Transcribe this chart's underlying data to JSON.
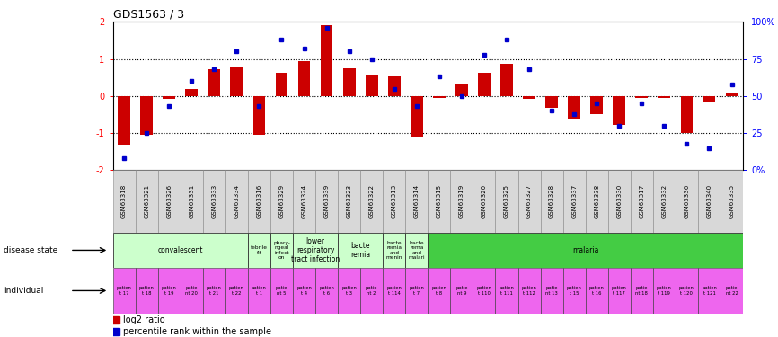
{
  "title": "GDS1563 / 3",
  "samples": [
    "GSM63318",
    "GSM63321",
    "GSM63326",
    "GSM63331",
    "GSM63333",
    "GSM63334",
    "GSM63316",
    "GSM63329",
    "GSM63324",
    "GSM63339",
    "GSM63323",
    "GSM63322",
    "GSM63313",
    "GSM63314",
    "GSM63315",
    "GSM63319",
    "GSM63320",
    "GSM63325",
    "GSM63327",
    "GSM63328",
    "GSM63337",
    "GSM63338",
    "GSM63330",
    "GSM63317",
    "GSM63332",
    "GSM63336",
    "GSM63340",
    "GSM63335"
  ],
  "log2_ratio": [
    -1.3,
    -1.05,
    -0.08,
    0.18,
    0.72,
    0.78,
    -1.05,
    0.62,
    0.95,
    1.92,
    0.75,
    0.58,
    0.52,
    -1.1,
    -0.05,
    0.32,
    0.62,
    0.88,
    -0.08,
    -0.32,
    -0.62,
    -0.48,
    -0.78,
    -0.05,
    -0.05,
    -1.0,
    -0.18,
    0.1
  ],
  "percentile": [
    8,
    25,
    43,
    60,
    68,
    80,
    43,
    88,
    82,
    96,
    80,
    75,
    55,
    43,
    63,
    50,
    78,
    88,
    68,
    40,
    38,
    45,
    30,
    45,
    30,
    18,
    15,
    58
  ],
  "disease_state_groups": [
    {
      "label": "convalescent",
      "start": 0,
      "end": 5,
      "color": "#ccffcc"
    },
    {
      "label": "febrile\nfit",
      "start": 6,
      "end": 6,
      "color": "#ccffcc"
    },
    {
      "label": "phary-\nngeal\ninfect\non",
      "start": 7,
      "end": 7,
      "color": "#ccffcc"
    },
    {
      "label": "lower\nrespiratory\ntract infection",
      "start": 8,
      "end": 9,
      "color": "#ccffcc"
    },
    {
      "label": "bacte\nremia",
      "start": 10,
      "end": 11,
      "color": "#ccffcc"
    },
    {
      "label": "bacte\nremia\nand\nmenin",
      "start": 12,
      "end": 12,
      "color": "#ccffcc"
    },
    {
      "label": "bacte\nrema\nand\nmalari",
      "start": 13,
      "end": 13,
      "color": "#ccffcc"
    },
    {
      "label": "malaria",
      "start": 14,
      "end": 27,
      "color": "#44cc44"
    }
  ],
  "individual_labels": [
    "patien\nt 17",
    "patien\nt 18",
    "patien\nt 19",
    "patie\nnt 20",
    "patien\nt 21",
    "patien\nt 22",
    "patien\nt 1",
    "patie\nnt 5",
    "patien\nt 4",
    "patien\nt 6",
    "patien\nt 3",
    "patie\nnt 2",
    "patien\nt 114",
    "patien\nt 7",
    "patien\nt 8",
    "patie\nnt 9",
    "patien\nt 110",
    "patien\nt 111",
    "patien\nt 112",
    "patie\nnt 13",
    "patien\nt 15",
    "patien\nt 16",
    "patien\nt 117",
    "patie\nnt 18",
    "patien\nt 119",
    "patien\nt 120",
    "patien\nt 121",
    "patie\nnt 22"
  ],
  "bar_color": "#cc0000",
  "dot_color": "#0000cc",
  "individual_color": "#ee66ee",
  "xlab_bg_color": "#cccccc",
  "ylim": [
    -2,
    2
  ],
  "y2lim": [
    0,
    100
  ],
  "yticks_left": [
    -2,
    -1,
    0,
    1,
    2
  ],
  "yticks_right": [
    0,
    25,
    50,
    75,
    100
  ],
  "ytick_right_labels": [
    "0%",
    "25",
    "50",
    "75",
    "100%"
  ],
  "dotted_lines": [
    -1,
    0,
    1
  ],
  "background_color": "#ffffff",
  "label_disease_state": "disease state",
  "label_individual": "individual",
  "legend_log2": "log2 ratio",
  "legend_pct": "percentile rank within the sample"
}
